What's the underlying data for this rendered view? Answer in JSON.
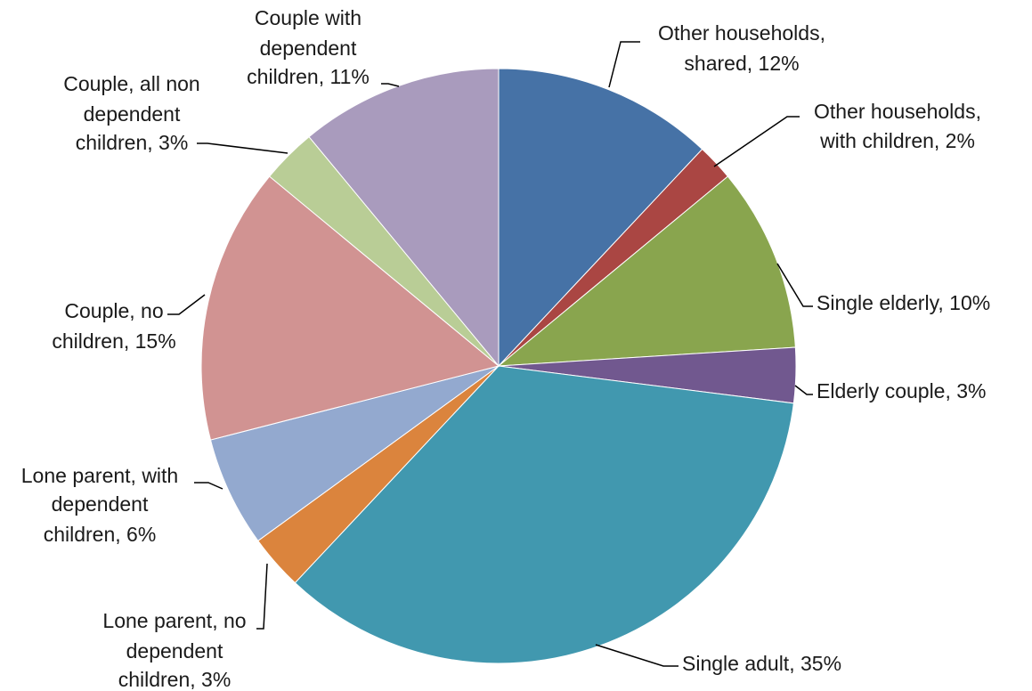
{
  "chart_data": {
    "type": "pie",
    "title": "",
    "start_angle_deg": 0,
    "direction": "clockwise",
    "slices": [
      {
        "label": "Other households, shared",
        "value": 12,
        "label_text": [
          "Other households,",
          "shared, 12%"
        ],
        "color": "#4672A6"
      },
      {
        "label": "Other households, with children",
        "value": 2,
        "label_text": [
          "Other households,",
          "with children, 2%"
        ],
        "color": "#AA4643"
      },
      {
        "label": "Single elderly",
        "value": 10,
        "label_text": [
          "Single elderly, 10%"
        ],
        "color": "#89A54E"
      },
      {
        "label": "Elderly couple",
        "value": 3,
        "label_text": [
          "Elderly couple, 3%"
        ],
        "color": "#71588F"
      },
      {
        "label": "Single adult",
        "value": 35,
        "label_text": [
          "Single adult, 35%"
        ],
        "color": "#4198AF"
      },
      {
        "label": "Lone parent, no dependent children",
        "value": 3,
        "label_text": [
          "Lone parent, no",
          "dependent",
          "children, 3%"
        ],
        "color": "#DB843D"
      },
      {
        "label": "Lone parent, with dependent children",
        "value": 6,
        "label_text": [
          "Lone parent, with",
          "dependent",
          "children, 6%"
        ],
        "color": "#93A9CF"
      },
      {
        "label": "Couple, no children",
        "value": 15,
        "label_text": [
          "Couple, no",
          "children, 15%"
        ],
        "color": "#D19392"
      },
      {
        "label": "Couple, all non dependent children",
        "value": 3,
        "label_text": [
          "Couple, all non",
          "dependent",
          "children, 3%"
        ],
        "color": "#B9CD96"
      },
      {
        "label": "Couple with dependent children",
        "value": 11,
        "label_text": [
          "Couple with",
          "dependent",
          "children, 11%"
        ],
        "color": "#A99BBD"
      }
    ]
  }
}
